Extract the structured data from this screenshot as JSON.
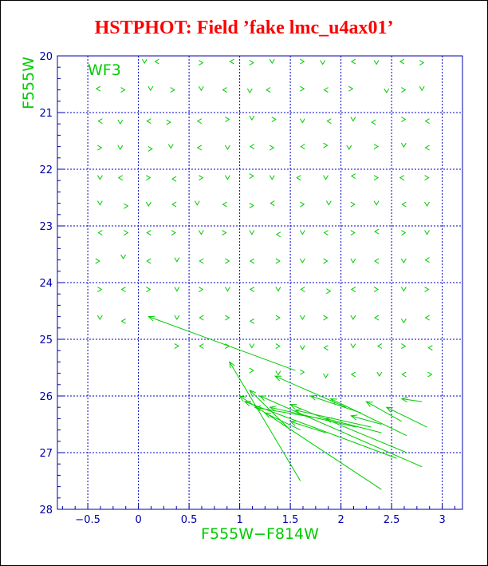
{
  "chart_data": {
    "type": "scatter",
    "title": "HSTPHOT: Field ’fake lmc_u4ax01’",
    "xlabel": "F555W−F814W",
    "ylabel": "F555W",
    "annotation": "WF3",
    "xlim": [
      -0.8,
      3.2
    ],
    "ylim": [
      28,
      20
    ],
    "xticks": [
      "−0.5",
      "0",
      "0.5",
      "1",
      "1.5",
      "2",
      "2.5",
      "3"
    ],
    "xtick_values": [
      -0.5,
      0,
      0.5,
      1,
      1.5,
      2,
      2.5,
      3
    ],
    "yticks": [
      "20",
      "21",
      "22",
      "23",
      "24",
      "25",
      "26",
      "27",
      "28"
    ],
    "ytick_values": [
      20,
      21,
      22,
      23,
      24,
      25,
      26,
      27,
      28
    ],
    "grid": true,
    "grid_x": [
      -0.5,
      0,
      0.5,
      1,
      1.5,
      2,
      2.5,
      3
    ],
    "grid_y": [
      21,
      22,
      23,
      24,
      25,
      26,
      27
    ],
    "colors": {
      "title": "#ff0000",
      "axis": "#0000aa",
      "grid": "#0000cc",
      "markers": "#00cc00",
      "axis_labels": "#00cc00",
      "annotation": "#00cc00"
    },
    "vectors": [
      {
        "x1": 0.1,
        "y1": 24.6,
        "x2": 1.55,
        "y2": 25.55
      },
      {
        "x1": 0.9,
        "y1": 25.4,
        "x2": 1.6,
        "y2": 27.5
      },
      {
        "x1": 1.0,
        "y1": 26.0,
        "x2": 2.4,
        "y2": 27.65
      },
      {
        "x1": 1.05,
        "y1": 26.1,
        "x2": 2.55,
        "y2": 27.1
      },
      {
        "x1": 1.1,
        "y1": 25.9,
        "x2": 1.5,
        "y2": 26.6
      },
      {
        "x1": 1.15,
        "y1": 26.2,
        "x2": 1.8,
        "y2": 26.4
      },
      {
        "x1": 1.2,
        "y1": 26.0,
        "x2": 2.8,
        "y2": 27.25
      },
      {
        "x1": 1.25,
        "y1": 26.3,
        "x2": 1.6,
        "y2": 26.6
      },
      {
        "x1": 1.3,
        "y1": 26.2,
        "x2": 2.15,
        "y2": 26.55
      },
      {
        "x1": 1.35,
        "y1": 25.65,
        "x2": 2.05,
        "y2": 26.2
      },
      {
        "x1": 1.5,
        "y1": 26.15,
        "x2": 2.65,
        "y2": 27.0
      },
      {
        "x1": 1.5,
        "y1": 26.45,
        "x2": 1.85,
        "y2": 26.65
      },
      {
        "x1": 1.55,
        "y1": 26.25,
        "x2": 2.3,
        "y2": 26.55
      },
      {
        "x1": 1.7,
        "y1": 26.0,
        "x2": 2.2,
        "y2": 26.3
      },
      {
        "x1": 1.85,
        "y1": 26.4,
        "x2": 2.4,
        "y2": 26.65
      },
      {
        "x1": 1.9,
        "y1": 26.05,
        "x2": 2.65,
        "y2": 26.7
      },
      {
        "x1": 2.1,
        "y1": 26.35,
        "x2": 2.4,
        "y2": 26.5
      },
      {
        "x1": 2.25,
        "y1": 26.1,
        "x2": 2.6,
        "y2": 26.45
      },
      {
        "x1": 2.45,
        "y1": 26.2,
        "x2": 2.85,
        "y2": 26.55
      },
      {
        "x1": 2.6,
        "y1": 26.05,
        "x2": 2.8,
        "y2": 26.1
      }
    ],
    "marks": [
      {
        "x": 0.06,
        "y": 20.1
      },
      {
        "x": 0.18,
        "y": 20.1
      },
      {
        "x": 0.62,
        "y": 20.12
      },
      {
        "x": 0.92,
        "y": 20.1
      },
      {
        "x": 1.12,
        "y": 20.12
      },
      {
        "x": 1.32,
        "y": 20.1
      },
      {
        "x": 1.62,
        "y": 20.1
      },
      {
        "x": 1.82,
        "y": 20.12
      },
      {
        "x": 2.12,
        "y": 20.1
      },
      {
        "x": 2.35,
        "y": 20.12
      },
      {
        "x": 2.6,
        "y": 20.1
      },
      {
        "x": 2.8,
        "y": 20.12
      },
      {
        "x": -0.4,
        "y": 20.58
      },
      {
        "x": -0.15,
        "y": 20.6
      },
      {
        "x": 0.12,
        "y": 20.58
      },
      {
        "x": 0.34,
        "y": 20.6
      },
      {
        "x": 0.62,
        "y": 20.58
      },
      {
        "x": 0.85,
        "y": 20.6
      },
      {
        "x": 1.1,
        "y": 20.62
      },
      {
        "x": 1.28,
        "y": 20.6
      },
      {
        "x": 1.62,
        "y": 20.58
      },
      {
        "x": 1.85,
        "y": 20.6
      },
      {
        "x": 2.1,
        "y": 20.58
      },
      {
        "x": 2.45,
        "y": 20.62
      },
      {
        "x": 2.62,
        "y": 20.6
      },
      {
        "x": 2.8,
        "y": 20.58
      },
      {
        "x": -0.38,
        "y": 21.15
      },
      {
        "x": -0.18,
        "y": 21.17
      },
      {
        "x": 0.1,
        "y": 21.15
      },
      {
        "x": 0.3,
        "y": 21.17
      },
      {
        "x": 0.6,
        "y": 21.15
      },
      {
        "x": 0.88,
        "y": 21.12
      },
      {
        "x": 1.12,
        "y": 21.1
      },
      {
        "x": 1.34,
        "y": 21.12
      },
      {
        "x": 1.62,
        "y": 21.15
      },
      {
        "x": 1.88,
        "y": 21.15
      },
      {
        "x": 2.12,
        "y": 21.12
      },
      {
        "x": 2.32,
        "y": 21.17
      },
      {
        "x": 2.62,
        "y": 21.12
      },
      {
        "x": 2.85,
        "y": 21.15
      },
      {
        "x": -0.38,
        "y": 21.62
      },
      {
        "x": -0.18,
        "y": 21.62
      },
      {
        "x": 0.12,
        "y": 21.64
      },
      {
        "x": 0.32,
        "y": 21.6
      },
      {
        "x": 0.6,
        "y": 21.62
      },
      {
        "x": 0.88,
        "y": 21.62
      },
      {
        "x": 1.12,
        "y": 21.6
      },
      {
        "x": 1.32,
        "y": 21.62
      },
      {
        "x": 1.62,
        "y": 21.6
      },
      {
        "x": 1.85,
        "y": 21.58
      },
      {
        "x": 2.08,
        "y": 21.62
      },
      {
        "x": 2.35,
        "y": 21.6
      },
      {
        "x": 2.62,
        "y": 21.58
      },
      {
        "x": 2.85,
        "y": 21.62
      },
      {
        "x": -0.38,
        "y": 22.15
      },
      {
        "x": -0.18,
        "y": 22.15
      },
      {
        "x": 0.1,
        "y": 22.15
      },
      {
        "x": 0.35,
        "y": 22.17
      },
      {
        "x": 0.62,
        "y": 22.15
      },
      {
        "x": 0.88,
        "y": 22.15
      },
      {
        "x": 1.12,
        "y": 22.12
      },
      {
        "x": 1.32,
        "y": 22.15
      },
      {
        "x": 1.58,
        "y": 22.15
      },
      {
        "x": 1.85,
        "y": 22.15
      },
      {
        "x": 2.12,
        "y": 22.12
      },
      {
        "x": 2.35,
        "y": 22.15
      },
      {
        "x": 2.6,
        "y": 22.15
      },
      {
        "x": 2.85,
        "y": 22.15
      },
      {
        "x": -0.38,
        "y": 22.6
      },
      {
        "x": -0.12,
        "y": 22.65
      },
      {
        "x": 0.1,
        "y": 22.62
      },
      {
        "x": 0.35,
        "y": 22.62
      },
      {
        "x": 0.58,
        "y": 22.6
      },
      {
        "x": 0.85,
        "y": 22.62
      },
      {
        "x": 1.12,
        "y": 22.64
      },
      {
        "x": 1.32,
        "y": 22.6
      },
      {
        "x": 1.62,
        "y": 22.62
      },
      {
        "x": 1.88,
        "y": 22.6
      },
      {
        "x": 2.12,
        "y": 22.62
      },
      {
        "x": 2.35,
        "y": 22.6
      },
      {
        "x": 2.62,
        "y": 22.62
      },
      {
        "x": 2.85,
        "y": 22.62
      },
      {
        "x": -0.38,
        "y": 23.12
      },
      {
        "x": -0.12,
        "y": 23.12
      },
      {
        "x": 0.1,
        "y": 23.12
      },
      {
        "x": 0.35,
        "y": 23.12
      },
      {
        "x": 0.62,
        "y": 23.12
      },
      {
        "x": 0.85,
        "y": 23.12
      },
      {
        "x": 1.12,
        "y": 23.12
      },
      {
        "x": 1.38,
        "y": 23.15
      },
      {
        "x": 1.62,
        "y": 23.12
      },
      {
        "x": 1.85,
        "y": 23.12
      },
      {
        "x": 2.12,
        "y": 23.12
      },
      {
        "x": 2.35,
        "y": 23.1
      },
      {
        "x": 2.62,
        "y": 23.12
      },
      {
        "x": 2.85,
        "y": 23.12
      },
      {
        "x": -0.4,
        "y": 23.62
      },
      {
        "x": -0.15,
        "y": 23.55
      },
      {
        "x": 0.1,
        "y": 23.62
      },
      {
        "x": 0.38,
        "y": 23.6
      },
      {
        "x": 0.62,
        "y": 23.62
      },
      {
        "x": 0.88,
        "y": 23.62
      },
      {
        "x": 1.12,
        "y": 23.62
      },
      {
        "x": 1.38,
        "y": 23.62
      },
      {
        "x": 1.62,
        "y": 23.62
      },
      {
        "x": 1.85,
        "y": 23.62
      },
      {
        "x": 2.12,
        "y": 23.62
      },
      {
        "x": 2.35,
        "y": 23.62
      },
      {
        "x": 2.62,
        "y": 23.62
      },
      {
        "x": 2.85,
        "y": 23.6
      },
      {
        "x": -0.38,
        "y": 24.12
      },
      {
        "x": -0.15,
        "y": 24.12
      },
      {
        "x": 0.1,
        "y": 24.12
      },
      {
        "x": 0.38,
        "y": 24.12
      },
      {
        "x": 0.62,
        "y": 24.12
      },
      {
        "x": 0.88,
        "y": 24.12
      },
      {
        "x": 1.12,
        "y": 24.12
      },
      {
        "x": 1.38,
        "y": 24.12
      },
      {
        "x": 1.62,
        "y": 24.12
      },
      {
        "x": 1.88,
        "y": 24.15
      },
      {
        "x": 2.12,
        "y": 24.12
      },
      {
        "x": 2.35,
        "y": 24.12
      },
      {
        "x": 2.62,
        "y": 24.12
      },
      {
        "x": 2.85,
        "y": 24.12
      },
      {
        "x": -0.38,
        "y": 24.62
      },
      {
        "x": -0.15,
        "y": 24.68
      },
      {
        "x": 0.38,
        "y": 24.62
      },
      {
        "x": 0.62,
        "y": 24.62
      },
      {
        "x": 0.88,
        "y": 24.62
      },
      {
        "x": 1.12,
        "y": 24.68
      },
      {
        "x": 1.38,
        "y": 24.62
      },
      {
        "x": 1.62,
        "y": 24.62
      },
      {
        "x": 1.85,
        "y": 24.62
      },
      {
        "x": 2.12,
        "y": 24.62
      },
      {
        "x": 2.35,
        "y": 24.62
      },
      {
        "x": 2.62,
        "y": 24.68
      },
      {
        "x": 2.85,
        "y": 24.62
      },
      {
        "x": 0.38,
        "y": 25.12
      },
      {
        "x": 0.62,
        "y": 25.12
      },
      {
        "x": 0.88,
        "y": 25.12
      },
      {
        "x": 1.12,
        "y": 25.12
      },
      {
        "x": 1.38,
        "y": 25.12
      },
      {
        "x": 1.62,
        "y": 25.15
      },
      {
        "x": 1.85,
        "y": 25.15
      },
      {
        "x": 2.12,
        "y": 25.12
      },
      {
        "x": 2.38,
        "y": 25.12
      },
      {
        "x": 2.62,
        "y": 25.12
      },
      {
        "x": 2.88,
        "y": 25.15
      },
      {
        "x": 1.12,
        "y": 25.55
      },
      {
        "x": 1.38,
        "y": 25.6
      },
      {
        "x": 1.62,
        "y": 25.58
      },
      {
        "x": 1.85,
        "y": 25.65
      },
      {
        "x": 2.12,
        "y": 25.62
      },
      {
        "x": 2.38,
        "y": 25.62
      },
      {
        "x": 2.62,
        "y": 25.62
      },
      {
        "x": 2.88,
        "y": 25.62
      }
    ]
  }
}
